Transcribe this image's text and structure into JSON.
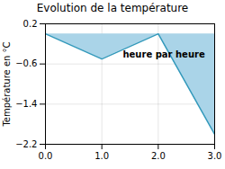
{
  "chart_data": {
    "type": "area",
    "title": "Evolution de la température",
    "ylabel": "Température en °C",
    "x": [
      0,
      1,
      2,
      3
    ],
    "values": [
      0.0,
      -0.5,
      0.0,
      -2.0
    ],
    "colors": [
      "#aad4e8",
      "#3399bb"
    ],
    "xlim": [
      0,
      3
    ],
    "xticks": [
      0,
      1,
      2,
      3
    ],
    "ylim": [
      -2.2,
      0.2
    ],
    "yticks": [
      0.2,
      -0.6,
      -1.4,
      -2.2
    ],
    "grid": true,
    "annotations": [
      {
        "text": "heure par heure",
        "x": 2.1,
        "y": -0.42
      }
    ]
  }
}
